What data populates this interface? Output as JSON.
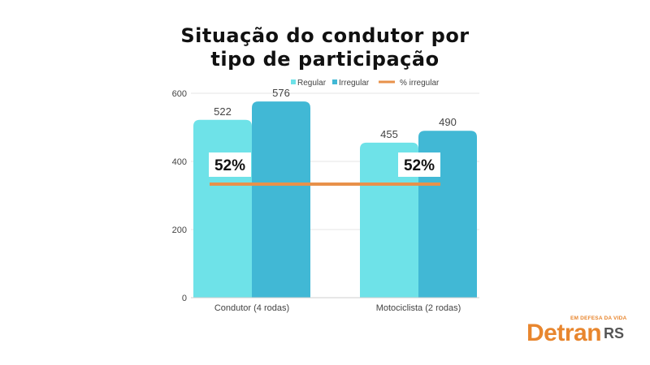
{
  "title_line1": "Situação do condutor por",
  "title_line2": "tipo de participação",
  "logo": {
    "tagline": "EM DEFESA DA VIDA",
    "brand": "Detran",
    "suffix": "RS"
  },
  "colors": {
    "regular": "#6ee2e8",
    "irregular": "#41b8d5",
    "pct_line": "#e8914a"
  },
  "chart_data": {
    "type": "bar",
    "categories": [
      "Condutor (4 rodas)",
      "Motociclista (2 rodas)"
    ],
    "series": [
      {
        "name": "Regular",
        "values": [
          522,
          455
        ]
      },
      {
        "name": "Irregular",
        "values": [
          576,
          490
        ]
      }
    ],
    "line_series": {
      "name": "% irregular",
      "values": [
        52,
        52
      ],
      "labels": [
        "52%",
        "52%"
      ]
    },
    "ylim": [
      0,
      600
    ],
    "yticks": [
      0,
      200,
      400,
      600
    ],
    "grid": true,
    "legend_position": "top-right"
  }
}
